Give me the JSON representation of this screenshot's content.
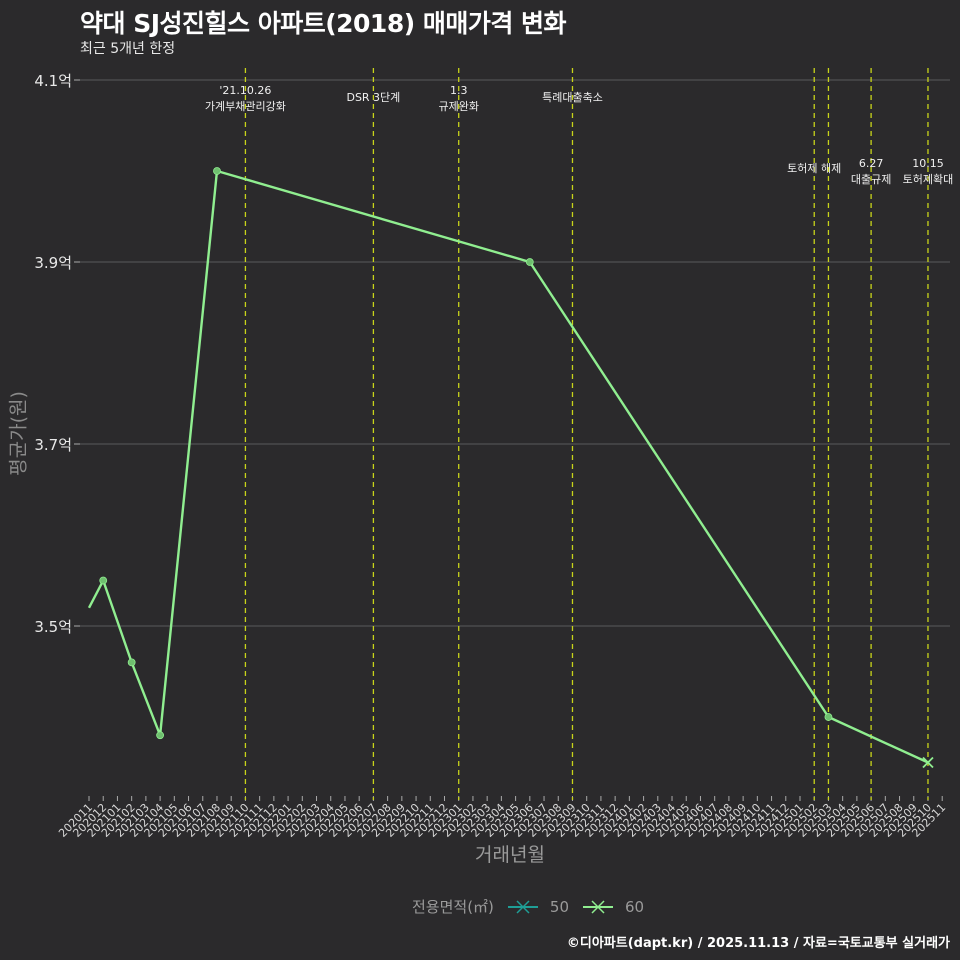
{
  "header": {
    "title": "약대 SJ성진힐스 아파트(2018) 매매가격 변화",
    "subtitle": "최근 5개년 한정"
  },
  "axes": {
    "xlabel": "거래년월",
    "ylabel": "평균가(원)"
  },
  "legend": {
    "title": "전용면적(㎡)",
    "items": [
      {
        "label": "50",
        "color": "#1f9e96"
      },
      {
        "label": "60",
        "color": "#90ee90"
      }
    ]
  },
  "caption": "©디아파트(dapt.kr) / 2025.11.13 / 자료=국토교통부 실거래가",
  "colors": {
    "background": "#2b2a2c",
    "grid": "#5a595b",
    "line": "#90ee90",
    "event_line": "#c8d41a",
    "text": "#e8e8e8"
  },
  "chart_data": {
    "type": "line",
    "title": "약대 SJ성진힐스 아파트(2018) 매매가격 변화",
    "subtitle": "최근 5개년 한정",
    "xlabel": "거래년월",
    "ylabel": "평균가(원)",
    "categories": [
      "202011",
      "202012",
      "202101",
      "202102",
      "202103",
      "202104",
      "202105",
      "202106",
      "202107",
      "202108",
      "202109",
      "202110",
      "202111",
      "202112",
      "202201",
      "202202",
      "202203",
      "202204",
      "202205",
      "202206",
      "202207",
      "202208",
      "202209",
      "202210",
      "202211",
      "202212",
      "202301",
      "202302",
      "202303",
      "202304",
      "202305",
      "202306",
      "202307",
      "202308",
      "202309",
      "202310",
      "202311",
      "202312",
      "202401",
      "202402",
      "202403",
      "202404",
      "202405",
      "202406",
      "202407",
      "202408",
      "202409",
      "202410",
      "202411",
      "202412",
      "202501",
      "202502",
      "202503",
      "202504",
      "202505",
      "202506",
      "202507",
      "202508",
      "202509",
      "202510",
      "202511"
    ],
    "y_ticks": [
      {
        "value": 3.5,
        "label": "3.5억"
      },
      {
        "value": 3.7,
        "label": "3.7억"
      },
      {
        "value": 3.9,
        "label": "3.9억"
      },
      {
        "value": 4.1,
        "label": "4.1억"
      }
    ],
    "ylim": [
      3.31,
      4.11
    ],
    "grid": true,
    "legend_position": "bottom",
    "series": [
      {
        "name": "60",
        "color": "#90ee90",
        "points": [
          {
            "x": "202011",
            "y": 3.52,
            "marker": false
          },
          {
            "x": "202012",
            "y": 3.55,
            "marker": true
          },
          {
            "x": "202102",
            "y": 3.46,
            "marker": true
          },
          {
            "x": "202104",
            "y": 3.38,
            "marker": true
          },
          {
            "x": "202108",
            "y": 4.0,
            "marker": true
          },
          {
            "x": "202306",
            "y": 3.9,
            "marker": true
          },
          {
            "x": "202503",
            "y": 3.4,
            "marker": true
          },
          {
            "x": "202510",
            "y": 3.35,
            "marker": "cross"
          }
        ]
      },
      {
        "name": "50",
        "color": "#1f9e96",
        "points": []
      }
    ],
    "annotations": [
      {
        "x": "202110",
        "lines": [
          "'21.10.26",
          "가계부채관리강화"
        ],
        "label_y": 0
      },
      {
        "x": "202207",
        "lines": [
          "DSR 3단계"
        ],
        "label_y": 2
      },
      {
        "x": "202301",
        "lines": [
          "1.3",
          "규제완화"
        ],
        "label_y": 0
      },
      {
        "x": "202309",
        "lines": [
          "특례대출축소"
        ],
        "label_y": 2
      },
      {
        "x": "202502",
        "lines": [
          "토허제 해제"
        ],
        "label_y": 1
      },
      {
        "x": "202503",
        "lines": [],
        "label_y": 1
      },
      {
        "x": "202506",
        "lines": [
          "6.27",
          "대출규제"
        ],
        "label_y": 3
      },
      {
        "x": "202510",
        "lines": [
          "10.15",
          "토허제확대"
        ],
        "label_y": 3
      }
    ]
  }
}
